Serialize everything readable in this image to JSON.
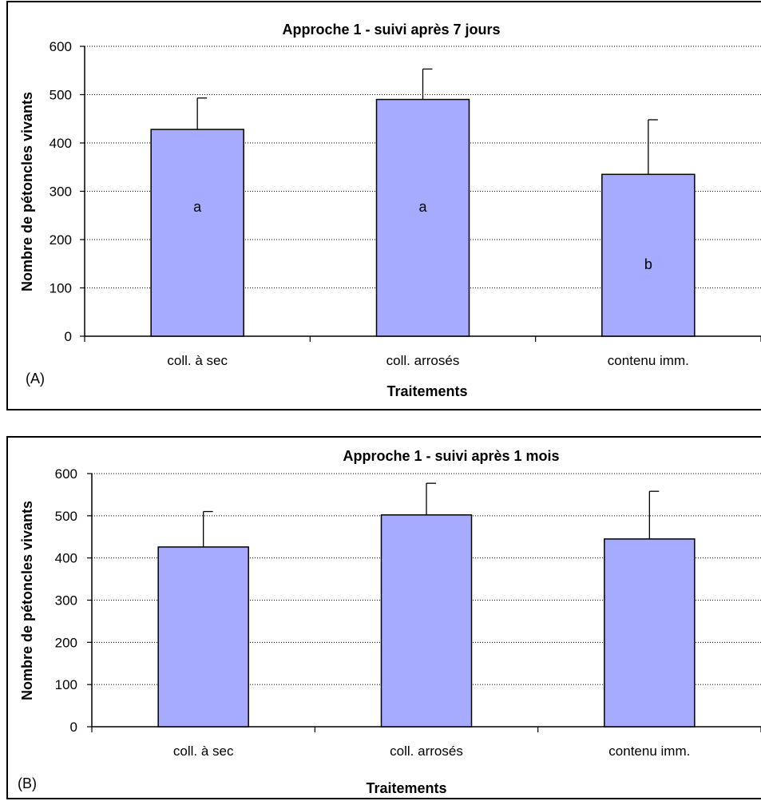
{
  "chart_data": [
    {
      "type": "bar",
      "panel_id": "a",
      "title": "Approche 1 - suivi après 7 jours",
      "xlabel": "Traitements",
      "ylabel": "Nombre de pétoncles vivants",
      "panel_label": "(A)",
      "categories": [
        "coll. à sec",
        "coll. arrosés",
        "contenu imm."
      ],
      "values": [
        428,
        490,
        335
      ],
      "error_plus": [
        65,
        63,
        113
      ],
      "significance_letters": [
        "a",
        "a",
        "b"
      ],
      "ylim": [
        0,
        600
      ],
      "yticks": [
        "0",
        "100",
        "200",
        "300",
        "400",
        "500",
        "600"
      ],
      "grid": "horizontal dotted",
      "bar_color": "#A6ABFF"
    },
    {
      "type": "bar",
      "panel_id": "b",
      "title": "Approche 1 - suivi après 1 mois",
      "xlabel": "Traitements",
      "ylabel": "Nombre de pétoncles vivants",
      "panel_label": "(B)",
      "categories": [
        "coll. à sec",
        "coll. arrosés",
        "contenu imm."
      ],
      "values": [
        426,
        502,
        445
      ],
      "error_plus": [
        84,
        75,
        113
      ],
      "significance_letters": [
        "",
        "",
        ""
      ],
      "ylim": [
        0,
        600
      ],
      "yticks": [
        "0",
        "100",
        "200",
        "300",
        "400",
        "500",
        "600"
      ],
      "grid": "horizontal dotted",
      "bar_color": "#A6ABFF"
    }
  ]
}
